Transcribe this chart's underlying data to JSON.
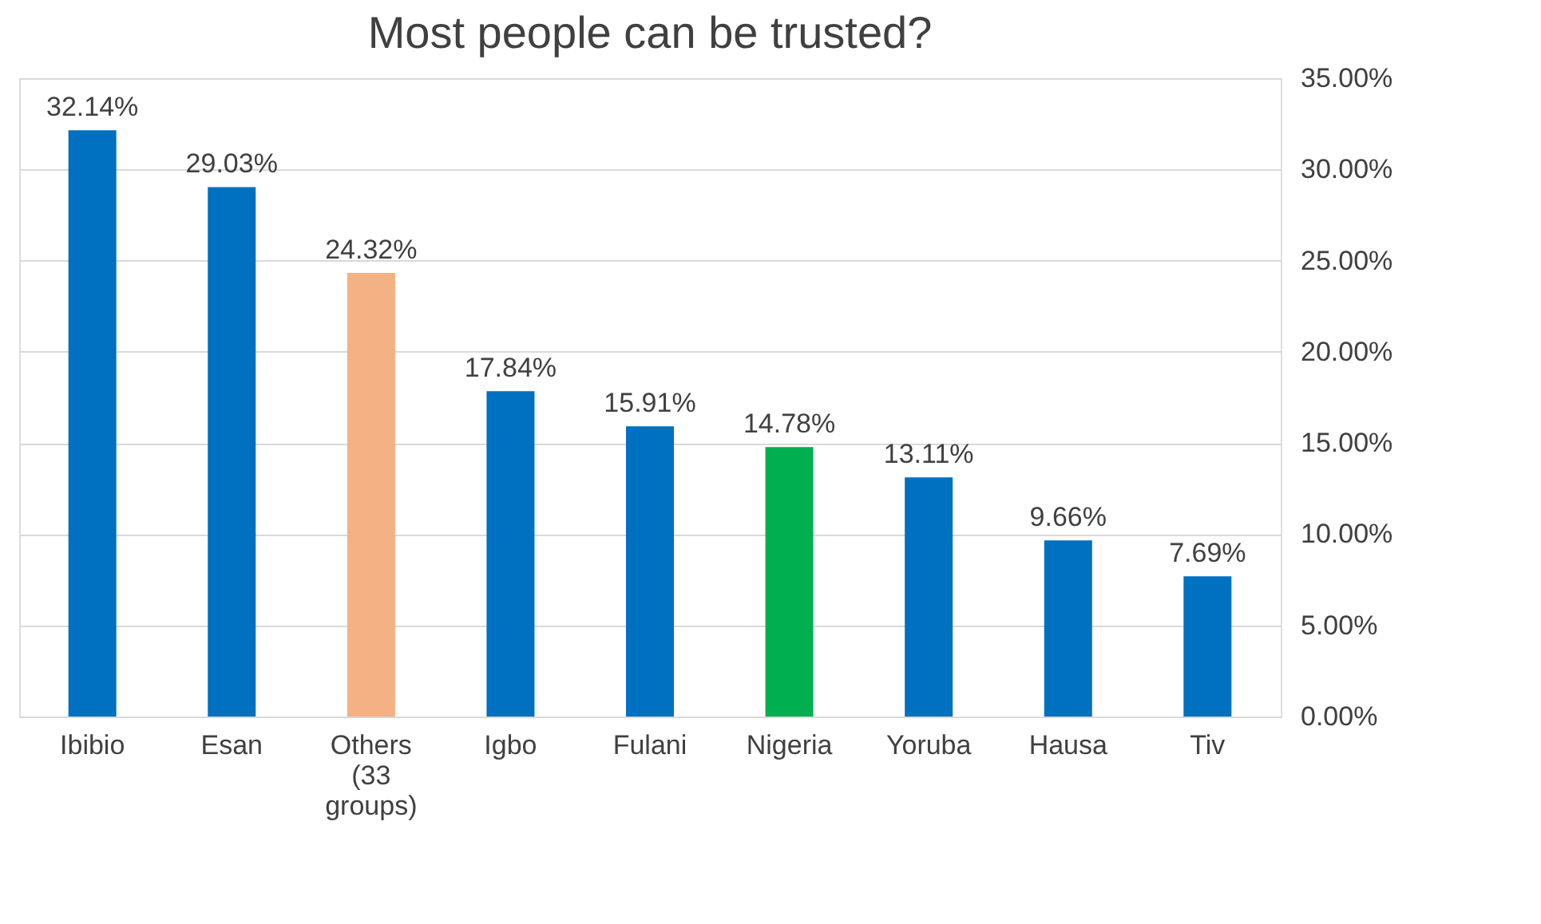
{
  "chart_data": {
    "type": "bar",
    "title": "Most people can be trusted?",
    "categories": [
      "Ibibio",
      "Esan",
      "Others (33 groups)",
      "Igbo",
      "Fulani",
      "Nigeria",
      "Yoruba",
      "Hausa",
      "Tiv"
    ],
    "values": [
      32.14,
      29.03,
      24.32,
      17.84,
      15.91,
      14.78,
      13.11,
      9.66,
      7.69
    ],
    "colors": [
      "#0070c0",
      "#0070c0",
      "#f4b183",
      "#0070c0",
      "#0070c0",
      "#00b050",
      "#0070c0",
      "#0070c0",
      "#0070c0"
    ],
    "value_labels": [
      "32.14%",
      "29.03%",
      "24.32%",
      "17.84%",
      "15.91%",
      "14.78%",
      "13.11%",
      "9.66%",
      "7.69%"
    ],
    "ylim": [
      0,
      35
    ],
    "yticks": [
      {
        "value": 0,
        "label": "0.00%"
      },
      {
        "value": 5,
        "label": "5.00%"
      },
      {
        "value": 10,
        "label": "10.00%"
      },
      {
        "value": 15,
        "label": "15.00%"
      },
      {
        "value": 20,
        "label": "20.00%"
      },
      {
        "value": 25,
        "label": "25.00%"
      },
      {
        "value": 30,
        "label": "30.00%"
      },
      {
        "value": 35,
        "label": "35.00%"
      }
    ],
    "grid": "y"
  }
}
